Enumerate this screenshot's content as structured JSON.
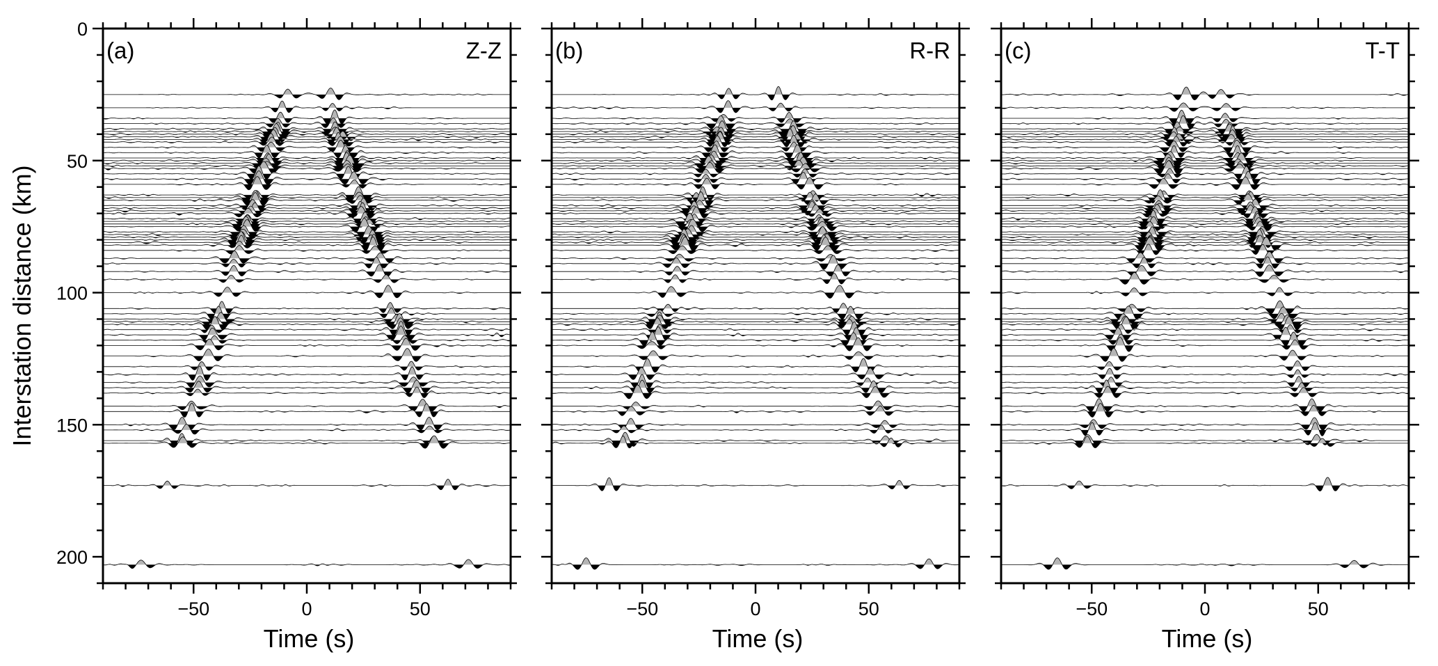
{
  "chart_data": {
    "type": "seismic record section",
    "ylabel": "Interstation distance (km)",
    "xlabel": "Time (s)",
    "xlim": [
      -90,
      90
    ],
    "ylim": [
      0,
      210
    ],
    "y_inverted": true,
    "x_ticks": [
      -50,
      0,
      50
    ],
    "x_tick_labels": [
      "−50",
      "0",
      "50"
    ],
    "y_ticks": [
      0,
      50,
      100,
      150,
      200
    ],
    "y_tick_labels": [
      "0",
      "50",
      "100",
      "150",
      "200"
    ],
    "positive_fill_color": "#b5b5b5",
    "negative_fill_color": "#000000",
    "trace_distances_km": [
      25,
      30,
      34,
      36,
      38,
      39,
      40,
      41,
      42,
      43,
      45,
      47,
      49,
      50,
      51,
      52,
      53,
      55,
      57,
      59,
      63,
      64,
      65,
      67,
      68,
      69,
      70,
      72,
      73,
      74,
      75,
      77,
      78,
      79,
      80,
      81,
      82,
      84,
      87,
      89,
      92,
      95,
      100,
      106,
      108,
      110,
      111,
      112,
      114,
      116,
      118,
      120,
      124,
      128,
      131,
      134,
      136,
      138,
      143,
      145,
      150,
      152,
      156,
      157,
      173,
      203
    ],
    "panels": [
      {
        "label": "(a)",
        "component": "Z-Z",
        "velocity_km_s": 2.8,
        "t_offset_s": 0
      },
      {
        "label": "(b)",
        "component": "R-R",
        "velocity_km_s": 2.75,
        "t_offset_s": 1.5
      },
      {
        "label": "(c)",
        "component": "T-T",
        "velocity_km_s": 3.05,
        "t_offset_s": -1
      }
    ]
  }
}
